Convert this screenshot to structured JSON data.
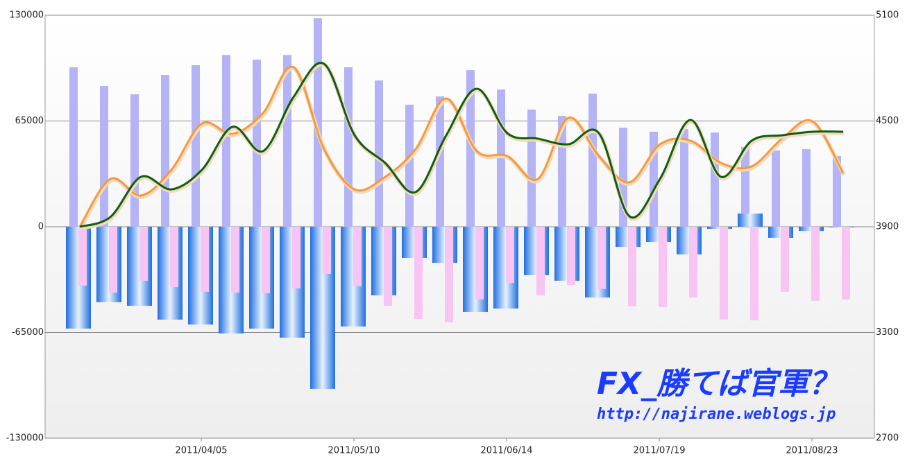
{
  "chart_data": {
    "type": "bar",
    "categories": [
      null,
      null,
      null,
      null,
      "2011/04/05",
      null,
      null,
      null,
      null,
      "2011/05/10",
      null,
      null,
      null,
      null,
      "2011/06/14",
      null,
      null,
      null,
      null,
      "2011/07/19",
      null,
      null,
      null,
      null,
      "2011/08/23",
      null
    ],
    "ylim": [
      -130000,
      130000
    ],
    "yticks": [
      -130000,
      -65000,
      0,
      65000,
      130000
    ],
    "y2lim": [
      2700,
      5100
    ],
    "y2ticks": [
      2700,
      3300,
      3900,
      4500,
      5100
    ],
    "grid": true,
    "series": [
      {
        "type": "bar",
        "color": "#b3b3f5",
        "values": [
          98000,
          86500,
          81400,
          93300,
          99300,
          105600,
          102700,
          105600,
          128200,
          98000,
          89900,
          75000,
          80100,
          96300,
          84300,
          72000,
          68200,
          81800,
          60900,
          58400,
          60100,
          57900,
          49000,
          46900,
          47700,
          43500
        ]
      },
      {
        "type": "bar",
        "color": "#2f7fe8",
        "values": [
          -62600,
          -46400,
          -48600,
          -57100,
          -60100,
          -65600,
          -62600,
          -68200,
          -99700,
          -61300,
          -42200,
          -19200,
          -22200,
          -52400,
          -50300,
          -29800,
          -33200,
          -43500,
          -12400,
          -9400,
          -17000,
          -1300,
          8100,
          -6800,
          -2600,
          -400
        ]
      },
      {
        "type": "bar",
        "color": "#f8c4f4",
        "values": [
          -36200,
          -40500,
          -33200,
          -37100,
          -40000,
          -40500,
          -40900,
          -37900,
          -29000,
          -36600,
          -48600,
          -56700,
          -58800,
          -44700,
          -34500,
          -42200,
          -35800,
          -38300,
          -49000,
          -49400,
          -43500,
          -57100,
          -57500,
          -40000,
          -45600,
          -44700
        ]
      },
      {
        "type": "line",
        "axis": "y2",
        "color": "#f59a3c",
        "values": [
          3900,
          4171,
          4077,
          4223,
          4486,
          4427,
          4545,
          4805,
          4341,
          4112,
          4183,
          4341,
          4628,
          4329,
          4301,
          4171,
          4518,
          4301,
          4152,
          4368,
          4388,
          4262,
          4242,
          4400,
          4498,
          4203
        ]
      },
      {
        "type": "line",
        "axis": "y2",
        "color": "#0f5e0f",
        "values": [
          3900,
          3955,
          4183,
          4112,
          4223,
          4467,
          4329,
          4636,
          4824,
          4419,
          4262,
          4097,
          4419,
          4683,
          4431,
          4400,
          4368,
          4431,
          3959,
          4171,
          4506,
          4183,
          4388,
          4419,
          4439,
          4439
        ]
      }
    ],
    "annotations": [
      "FX_勝てば官軍？",
      "http://najirane.weblogs.jp"
    ]
  }
}
